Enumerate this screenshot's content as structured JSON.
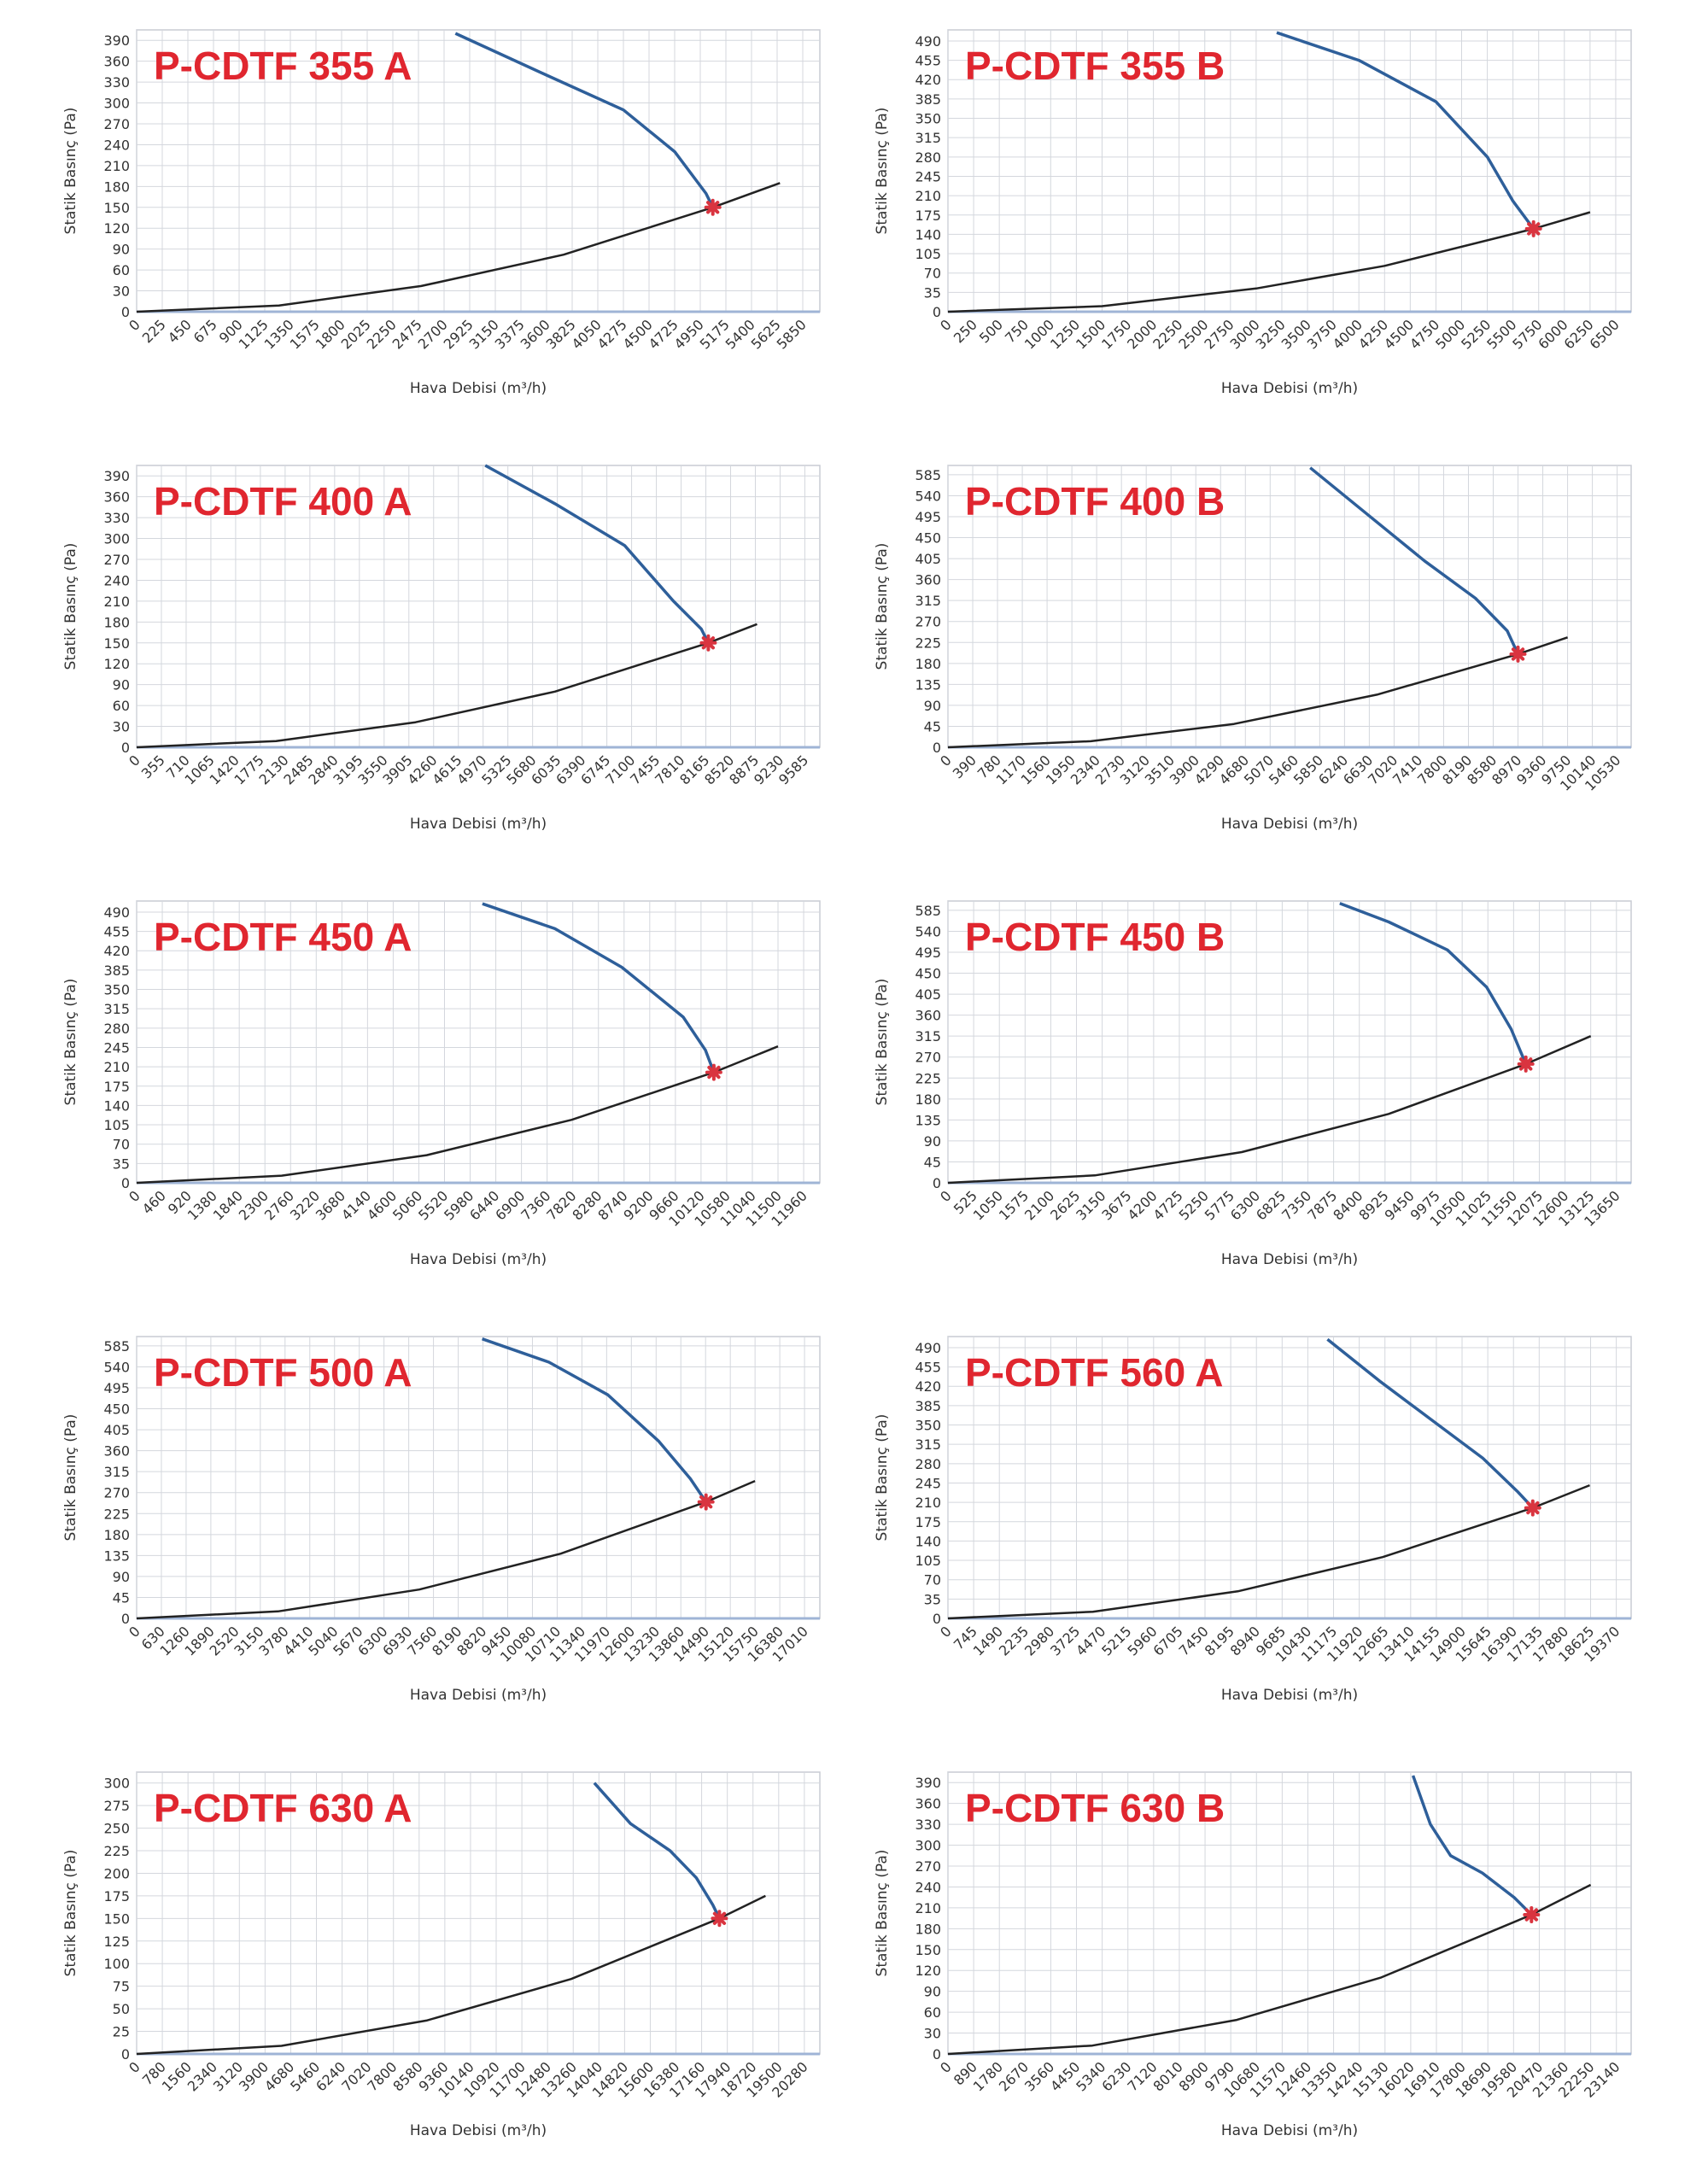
{
  "chart_data": [
    {
      "type": "line",
      "title": "P-CDTF 355 A",
      "x_label": "Hava Debisi (m³/h)",
      "y_label": "Statik Basınç (Pa)",
      "xlim": [
        0,
        6000
      ],
      "xticks": [
        0,
        225,
        450,
        675,
        900,
        1125,
        1350,
        1575,
        1800,
        2025,
        2250,
        2475,
        2700,
        2925,
        3150,
        3375,
        3600,
        3825,
        4050,
        4275,
        4500,
        4725,
        4950,
        5175,
        5400,
        5625,
        5850
      ],
      "ylim": [
        0,
        405
      ],
      "yticks": [
        0,
        30,
        60,
        90,
        120,
        150,
        180,
        210,
        240,
        270,
        300,
        330,
        360,
        390
      ],
      "grid": true,
      "series": [
        {
          "color": "#2e5f9a",
          "x": [
            2800,
            3600,
            4275,
            4725,
            5000,
            5060
          ],
          "values": [
            400,
            340,
            290,
            230,
            170,
            150
          ]
        },
        {
          "color": "#222222",
          "x": [
            0,
            1250,
            2500,
            3750,
            5060,
            5650
          ],
          "values": [
            0,
            9,
            37,
            82,
            150,
            185
          ]
        }
      ],
      "marker": {
        "x": 5060,
        "y": 150,
        "color": "#d9343f"
      }
    },
    {
      "type": "line",
      "title": "P-CDTF 355 B",
      "x_label": "Hava Debisi (m³/h)",
      "y_label": "Statik Basınç (Pa)",
      "xlim": [
        0,
        6650
      ],
      "xticks": [
        0,
        250,
        500,
        750,
        1000,
        1250,
        1500,
        1750,
        2000,
        2250,
        2500,
        2750,
        3000,
        3250,
        3500,
        3750,
        4000,
        4250,
        4500,
        4750,
        5000,
        5250,
        5500,
        5750,
        6000,
        6250,
        6500
      ],
      "ylim": [
        0,
        510
      ],
      "yticks": [
        0,
        35,
        70,
        105,
        140,
        175,
        210,
        245,
        280,
        315,
        350,
        385,
        420,
        455,
        490
      ],
      "grid": true,
      "series": [
        {
          "color": "#2e5f9a",
          "x": [
            3200,
            4000,
            4750,
            5250,
            5500,
            5700
          ],
          "values": [
            505,
            455,
            380,
            280,
            200,
            150
          ]
        },
        {
          "color": "#222222",
          "x": [
            0,
            1500,
            3000,
            4250,
            5700,
            6250
          ],
          "values": [
            0,
            10,
            42,
            83,
            150,
            180
          ]
        }
      ],
      "marker": {
        "x": 5700,
        "y": 150,
        "color": "#d9343f"
      }
    },
    {
      "type": "line",
      "title": "P-CDTF 400 A",
      "x_label": "Hava Debisi (m³/h)",
      "y_label": "Statik Basınç (Pa)",
      "xlim": [
        0,
        9800
      ],
      "xticks": [
        0,
        355,
        710,
        1065,
        1420,
        1775,
        2130,
        2485,
        2840,
        3195,
        3550,
        3905,
        4260,
        4615,
        4970,
        5325,
        5680,
        6035,
        6390,
        6745,
        7100,
        7455,
        7810,
        8165,
        8520,
        8875,
        9230,
        9585
      ],
      "ylim": [
        0,
        405
      ],
      "yticks": [
        0,
        30,
        60,
        90,
        120,
        150,
        180,
        210,
        240,
        270,
        300,
        330,
        360,
        390
      ],
      "grid": true,
      "series": [
        {
          "color": "#2e5f9a",
          "x": [
            5000,
            6000,
            7000,
            7700,
            8100,
            8200
          ],
          "values": [
            405,
            350,
            290,
            210,
            170,
            150
          ]
        },
        {
          "color": "#222222",
          "x": [
            0,
            2000,
            4000,
            6000,
            8200,
            8900
          ],
          "values": [
            0,
            9,
            36,
            80,
            150,
            177
          ]
        }
      ],
      "marker": {
        "x": 8200,
        "y": 150,
        "color": "#d9343f"
      }
    },
    {
      "type": "line",
      "title": "P-CDTF 400 B",
      "x_label": "Hava Debisi (m³/h)",
      "y_label": "Statik Basınç (Pa)",
      "xlim": [
        0,
        10750
      ],
      "xticks": [
        0,
        390,
        780,
        1170,
        1560,
        1950,
        2340,
        2730,
        3120,
        3510,
        3900,
        4290,
        4680,
        5070,
        5460,
        5850,
        6240,
        6630,
        7020,
        7410,
        7800,
        8190,
        8580,
        8970,
        9360,
        9750,
        10140,
        10530
      ],
      "ylim": [
        0,
        605
      ],
      "yticks": [
        0,
        45,
        90,
        135,
        180,
        225,
        270,
        315,
        360,
        405,
        450,
        495,
        540,
        585
      ],
      "grid": true,
      "series": [
        {
          "color": "#2e5f9a",
          "x": [
            5700,
            6600,
            7500,
            8300,
            8800,
            8970
          ],
          "values": [
            600,
            500,
            400,
            320,
            250,
            200
          ]
        },
        {
          "color": "#222222",
          "x": [
            0,
            2250,
            4500,
            6750,
            8970,
            9750
          ],
          "values": [
            0,
            13,
            50,
            113,
            200,
            236
          ]
        }
      ],
      "marker": {
        "x": 8970,
        "y": 200,
        "color": "#d9343f"
      }
    },
    {
      "type": "line",
      "title": "P-CDTF 450 A",
      "x_label": "Hava Debisi (m³/h)",
      "y_label": "Statik Basınç (Pa)",
      "xlim": [
        0,
        12250
      ],
      "xticks": [
        0,
        460,
        920,
        1380,
        1840,
        2300,
        2760,
        3220,
        3680,
        4140,
        4600,
        5060,
        5520,
        5980,
        6440,
        6900,
        7360,
        7820,
        8280,
        8740,
        9200,
        9660,
        10120,
        10580,
        11040,
        11500,
        11960
      ],
      "ylim": [
        0,
        510
      ],
      "yticks": [
        0,
        35,
        70,
        105,
        140,
        175,
        210,
        245,
        280,
        315,
        350,
        385,
        420,
        455,
        490
      ],
      "grid": true,
      "series": [
        {
          "color": "#2e5f9a",
          "x": [
            6200,
            7500,
            8700,
            9800,
            10200,
            10350
          ],
          "values": [
            505,
            460,
            390,
            300,
            240,
            200
          ]
        },
        {
          "color": "#222222",
          "x": [
            0,
            2600,
            5200,
            7800,
            10350,
            11500
          ],
          "values": [
            0,
            13,
            50,
            114,
            200,
            247
          ]
        }
      ],
      "marker": {
        "x": 10350,
        "y": 200,
        "color": "#d9343f"
      }
    },
    {
      "type": "line",
      "title": "P-CDTF 450 B",
      "x_label": "Hava Debisi (m³/h)",
      "y_label": "Statik Basınç (Pa)",
      "xlim": [
        0,
        13950
      ],
      "xticks": [
        0,
        525,
        1050,
        1575,
        2100,
        2625,
        3150,
        3675,
        4200,
        4725,
        5250,
        5775,
        6300,
        6825,
        7350,
        7875,
        8400,
        8925,
        9450,
        9975,
        10500,
        11025,
        11550,
        12075,
        12600,
        13125,
        13650
      ],
      "ylim": [
        0,
        605
      ],
      "yticks": [
        0,
        45,
        90,
        135,
        180,
        225,
        270,
        315,
        360,
        405,
        450,
        495,
        540,
        585
      ],
      "grid": true,
      "series": [
        {
          "color": "#2e5f9a",
          "x": [
            8000,
            9000,
            10200,
            11000,
            11500,
            11800
          ],
          "values": [
            600,
            560,
            500,
            420,
            330,
            255
          ]
        },
        {
          "color": "#222222",
          "x": [
            0,
            3000,
            6000,
            9000,
            11800,
            13125
          ],
          "values": [
            0,
            16,
            66,
            148,
            255,
            315
          ]
        }
      ],
      "marker": {
        "x": 11800,
        "y": 255,
        "color": "#d9343f"
      }
    },
    {
      "type": "line",
      "title": "P-CDTF 500 A",
      "x_label": "Hava Debisi (m³/h)",
      "y_label": "Statik Basınç (Pa)",
      "xlim": [
        0,
        17400
      ],
      "xticks": [
        0,
        630,
        1260,
        1890,
        2520,
        3150,
        3780,
        4410,
        5040,
        5670,
        6300,
        6930,
        7560,
        8190,
        8820,
        9450,
        10080,
        10710,
        11340,
        11970,
        12600,
        13230,
        13860,
        14490,
        15120,
        15750,
        16380,
        17010
      ],
      "ylim": [
        0,
        605
      ],
      "yticks": [
        0,
        45,
        90,
        135,
        180,
        225,
        270,
        315,
        360,
        405,
        450,
        495,
        540,
        585
      ],
      "grid": true,
      "series": [
        {
          "color": "#2e5f9a",
          "x": [
            8800,
            10500,
            12000,
            13300,
            14100,
            14500
          ],
          "values": [
            600,
            550,
            480,
            380,
            300,
            250
          ]
        },
        {
          "color": "#222222",
          "x": [
            0,
            3600,
            7200,
            10800,
            14500,
            15750
          ],
          "values": [
            0,
            15,
            62,
            139,
            250,
            295
          ]
        }
      ],
      "marker": {
        "x": 14500,
        "y": 250,
        "color": "#d9343f"
      }
    },
    {
      "type": "line",
      "title": "P-CDTF 560 A",
      "x_label": "Hava Debisi (m³/h)",
      "y_label": "Statik Basınç (Pa)",
      "xlim": [
        0,
        19800
      ],
      "xticks": [
        0,
        745,
        1490,
        2235,
        2980,
        3725,
        4470,
        5215,
        5960,
        6705,
        7450,
        8195,
        8940,
        9685,
        10430,
        11175,
        11920,
        12665,
        13410,
        14155,
        14900,
        15645,
        16390,
        17135,
        17880,
        18625,
        19370
      ],
      "ylim": [
        0,
        510
      ],
      "yticks": [
        0,
        35,
        70,
        105,
        140,
        175,
        210,
        245,
        280,
        315,
        350,
        385,
        420,
        455,
        490
      ],
      "grid": true,
      "series": [
        {
          "color": "#2e5f9a",
          "x": [
            11000,
            12500,
            14000,
            15500,
            16500,
            16950
          ],
          "values": [
            505,
            430,
            360,
            290,
            230,
            200
          ]
        },
        {
          "color": "#222222",
          "x": [
            0,
            4200,
            8400,
            12600,
            16950,
            18600
          ],
          "values": [
            0,
            12,
            49,
            111,
            200,
            241
          ]
        }
      ],
      "marker": {
        "x": 16950,
        "y": 200,
        "color": "#d9343f"
      }
    },
    {
      "type": "line",
      "title": "P-CDTF 630 A",
      "x_label": "Hava Debisi (m³/h)",
      "y_label": "Statik Basınç (Pa)",
      "xlim": [
        0,
        20750
      ],
      "xticks": [
        0,
        780,
        1560,
        2340,
        3120,
        3900,
        4680,
        5460,
        6240,
        7020,
        7800,
        8580,
        9360,
        10140,
        10920,
        11700,
        12480,
        13260,
        14040,
        14820,
        15600,
        16380,
        17160,
        17940,
        18720,
        19500,
        20280
      ],
      "ylim": [
        0,
        312
      ],
      "yticks": [
        0,
        25,
        50,
        75,
        100,
        125,
        150,
        175,
        200,
        225,
        250,
        275,
        300
      ],
      "grid": true,
      "series": [
        {
          "color": "#2e5f9a",
          "x": [
            13900,
            15000,
            16200,
            17000,
            17500,
            17700
          ],
          "values": [
            300,
            255,
            225,
            195,
            165,
            150
          ]
        },
        {
          "color": "#222222",
          "x": [
            0,
            4400,
            8800,
            13200,
            17700,
            19100
          ],
          "values": [
            0,
            9,
            37,
            83,
            150,
            175
          ]
        }
      ],
      "marker": {
        "x": 17700,
        "y": 150,
        "color": "#d9343f"
      }
    },
    {
      "type": "line",
      "title": "P-CDTF 630 B",
      "x_label": "Hava Debisi (m³/h)",
      "y_label": "Statik Basınç (Pa)",
      "xlim": [
        0,
        23650
      ],
      "xticks": [
        0,
        890,
        1780,
        2670,
        3560,
        4450,
        5340,
        6230,
        7120,
        8010,
        8900,
        9790,
        10680,
        11570,
        12460,
        13350,
        14240,
        15130,
        16020,
        16910,
        17800,
        18690,
        19580,
        20470,
        21360,
        22250,
        23140
      ],
      "ylim": [
        0,
        405
      ],
      "yticks": [
        0,
        30,
        60,
        90,
        120,
        150,
        180,
        210,
        240,
        270,
        300,
        330,
        360,
        390
      ],
      "grid": true,
      "series": [
        {
          "color": "#2e5f9a",
          "x": [
            16100,
            16700,
            17400,
            18500,
            19600,
            20200
          ],
          "values": [
            400,
            330,
            285,
            260,
            225,
            200
          ]
        },
        {
          "color": "#222222",
          "x": [
            0,
            5000,
            10000,
            15000,
            20200,
            22250
          ],
          "values": [
            0,
            12,
            49,
            110,
            200,
            243
          ]
        }
      ],
      "marker": {
        "x": 20200,
        "y": 200,
        "color": "#d9343f"
      }
    }
  ]
}
